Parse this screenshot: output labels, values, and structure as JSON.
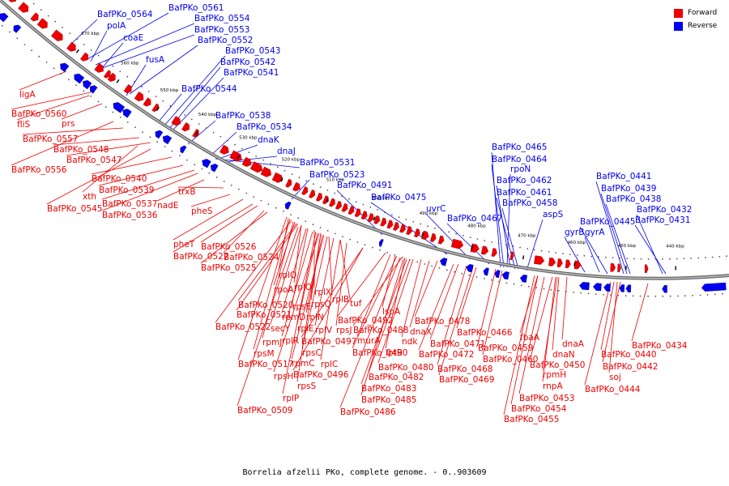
{
  "legend": {
    "forward_label": "Forward",
    "reverse_label": "Reverse",
    "forward_color": "#ee0000",
    "reverse_color": "#0000ee"
  },
  "caption": "Borrelia afzelii PKo, complete genome. - 0..903609",
  "diagram": {
    "type": "circular-genome-map-segment",
    "kbp_ticks": [
      "570 kbp",
      "560 kbp",
      "550 kbp",
      "540 kbp",
      "530 kbp",
      "520 kbp",
      "510 kbp",
      "500 kbp",
      "490 kbp",
      "480 kbp",
      "470 kbp",
      "460 kbp",
      "450 kbp",
      "440 kbp"
    ],
    "reverse_labels": [
      "BafPKo_0564",
      "BafPKo_0561",
      "polA",
      "BafPKo_0554",
      "BafPKo_0553",
      "coaE",
      "BafPKo_0552",
      "BafPKo_0543",
      "fusA",
      "BafPKo_0542",
      "BafPKo_0541",
      "BafPKo_0544",
      "BafPKo_0538",
      "BafPKo_0534",
      "dnaK",
      "dnaJ",
      "BafPKo_0531",
      "BafPKo_0523",
      "BafPKo_0491",
      "BafPKo_0475",
      "uvrC",
      "BafPKo_0467",
      "BafPKo_0465",
      "BafPKo_0464",
      "rpoN",
      "BafPKo_0462",
      "BafPKo_0461",
      "BafPKo_0458",
      "aspS",
      "BafPKo_0441",
      "BafPKo_0439",
      "BafPKo_0438",
      "BafPKo_0432",
      "BafPKo_0445",
      "BafPKo_0431",
      "gyrB",
      "gyrA"
    ],
    "forward_labels": [
      "ligA",
      "BafPKo_0560",
      "fliS",
      "prs",
      "BafPKo_0557",
      "BafPKo_0548",
      "BafPKo_0547",
      "BafPKo_0556",
      "BafPKo_0540",
      "BafPKo_0539",
      "xth",
      "BafPKo_0537",
      "BafPKo_0545",
      "BafPKo_0536",
      "nadE",
      "trxB",
      "pheS",
      "pheT",
      "BafPKo_0526",
      "BafPKo_0527",
      "BafPKo_0524",
      "BafPKo_0525",
      "rplQ",
      "rpoA",
      "rplO",
      "rplX",
      "rpsE",
      "BafPKo_0520",
      "rpsQ",
      "rplB",
      "tuf",
      "BafPKo_0521",
      "rpmD",
      "rplN",
      "BafPKo_0522",
      "secY",
      "rplE",
      "rplV",
      "rpsJ",
      "BafPKo_0492",
      "lspA",
      "BafPKo_0478",
      "rpmJ",
      "rplR",
      "BafPKo_0497",
      "BafPKo_0488",
      "murA",
      "dnaX",
      "BafPKo_0466",
      "rpsM",
      "rpsC",
      "BafPKo_0490",
      "ndk",
      "BafPKo_0471",
      "BafPKo_0517",
      "rpmC",
      "rplC",
      "lptB",
      "BafPKo_0472",
      "BafPKo_0459",
      "fbaA",
      "dnaA",
      "rpsH",
      "BafPKo_0496",
      "BafPKo_0480",
      "BafPKo_0468",
      "BafPKo_0460",
      "dnaN",
      "BafPKo_0434",
      "rpsS",
      "BafPKo_0482",
      "BafPKo_0469",
      "BafPKo_0450",
      "BafPKo_0440",
      "rplP",
      "BafPKo_0483",
      "rpmH",
      "BafPKo_0442",
      "BafPKo_0485",
      "rnpA",
      "soj",
      "BafPKo_0509",
      "BafPKo_0486",
      "BafPKo_0453",
      "BafPKo_0444",
      "BafPKo_0454",
      "BafPKo_0455"
    ]
  }
}
